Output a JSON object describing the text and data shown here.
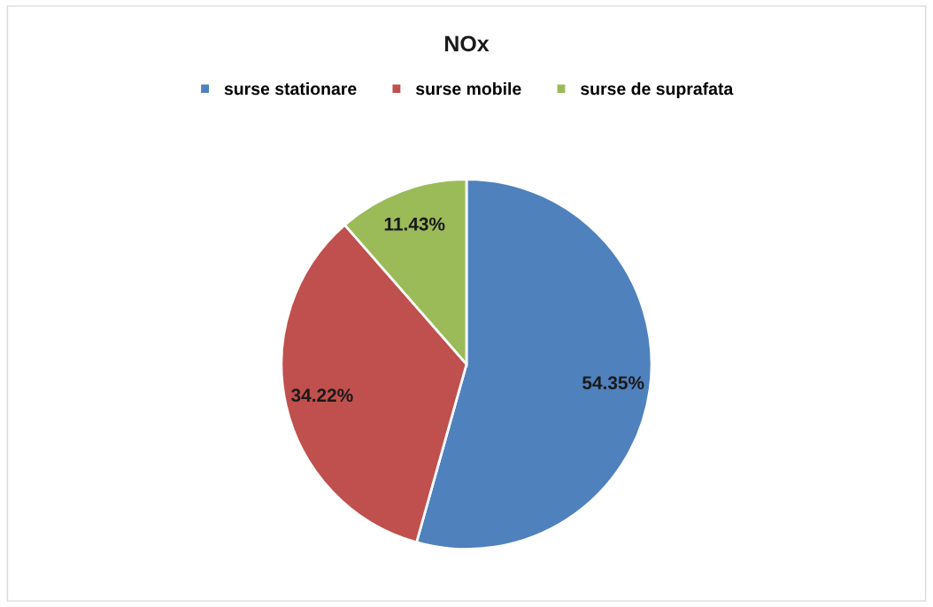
{
  "chart_data": {
    "type": "pie",
    "title": "NOx",
    "categories": [
      "surse stationare",
      "surse mobile",
      "surse de suprafata"
    ],
    "values": [
      54.35,
      34.22,
      11.43
    ],
    "colors": [
      "#4f81bd",
      "#c0504d",
      "#9bbb59"
    ],
    "value_labels": [
      "54.35%",
      "34.22%",
      "11.43%"
    ],
    "legend": "top"
  }
}
